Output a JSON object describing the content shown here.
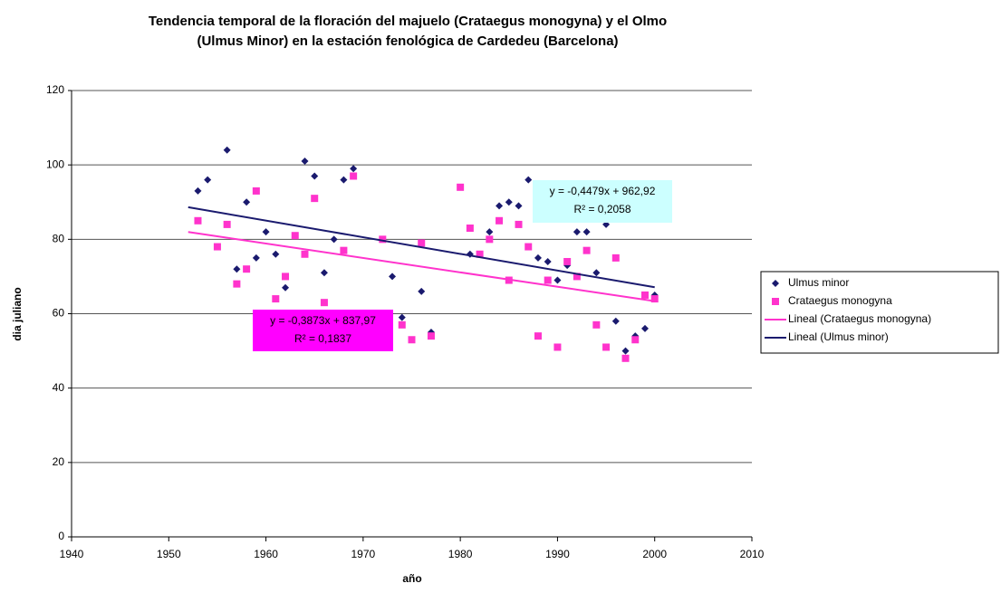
{
  "chart_data": {
    "type": "scatter",
    "title": [
      "Tendencia temporal de la floración del majuelo (Crataegus monogyna) y el Olmo",
      "(Ulmus Minor) en la estación fenológica de Cardedeu (Barcelona)"
    ],
    "x_label": "año",
    "y_label": "dia juliano",
    "xlim": [
      1940,
      2010
    ],
    "xticks": [
      1940,
      1950,
      1960,
      1970,
      1980,
      1990,
      2000,
      2010
    ],
    "ylim": [
      0,
      120
    ],
    "yticks": [
      0,
      20,
      40,
      60,
      80,
      100,
      120
    ],
    "grid": true,
    "series": [
      {
        "name": "Ulmus minor",
        "color": "#1a1a6e",
        "marker": "diamond",
        "x": [
          1953,
          1954,
          1956,
          1957,
          1958,
          1959,
          1960,
          1961,
          1962,
          1964,
          1965,
          1966,
          1967,
          1968,
          1969,
          1973,
          1974,
          1976,
          1977,
          1981,
          1983,
          1984,
          1985,
          1986,
          1987,
          1988,
          1989,
          1990,
          1991,
          1992,
          1993,
          1994,
          1995,
          1996,
          1997,
          1998,
          1999,
          2000
        ],
        "values": [
          93,
          96,
          104,
          72,
          90,
          75,
          82,
          76,
          67,
          101,
          97,
          71,
          80,
          96,
          99,
          70,
          59,
          66,
          55,
          76,
          82,
          89,
          90,
          89,
          96,
          75,
          74,
          69,
          73,
          82,
          82,
          71,
          84,
          58,
          50,
          54,
          56,
          65
        ]
      },
      {
        "name": "Crataegus monogyna",
        "color": "#ff33cc",
        "marker": "square",
        "x": [
          1953,
          1955,
          1956,
          1957,
          1958,
          1959,
          1961,
          1962,
          1963,
          1964,
          1965,
          1966,
          1968,
          1969,
          1972,
          1974,
          1975,
          1976,
          1977,
          1980,
          1981,
          1982,
          1983,
          1984,
          1985,
          1986,
          1987,
          1988,
          1989,
          1990,
          1991,
          1992,
          1993,
          1994,
          1995,
          1996,
          1997,
          1998,
          1999,
          2000
        ],
        "values": [
          85,
          78,
          84,
          68,
          72,
          93,
          64,
          70,
          81,
          76,
          91,
          63,
          77,
          97,
          80,
          57,
          53,
          79,
          54,
          94,
          83,
          76,
          80,
          85,
          69,
          84,
          78,
          54,
          69,
          51,
          74,
          70,
          77,
          57,
          51,
          75,
          48,
          53,
          65,
          64
        ]
      },
      {
        "name": "Lineal (Crataegus monogyna)",
        "color": "#ff33cc",
        "marker": "line",
        "x": [
          1952,
          2000
        ],
        "values": [
          81.96,
          63.37
        ]
      },
      {
        "name": "Lineal (Ulmus minor)",
        "color": "#1a1a6e",
        "marker": "line",
        "x": [
          1952,
          2000
        ],
        "values": [
          88.62,
          67.12
        ]
      }
    ],
    "annotations": [
      {
        "lines": [
          "y = -0,4479x + 962,92",
          "R² = 0,2058"
        ],
        "background": "#ccffff"
      },
      {
        "lines": [
          "y = -0,3873x + 837,97",
          "R² = 0,1837"
        ],
        "background": "#ff00ff"
      }
    ],
    "legend_position": "right"
  }
}
